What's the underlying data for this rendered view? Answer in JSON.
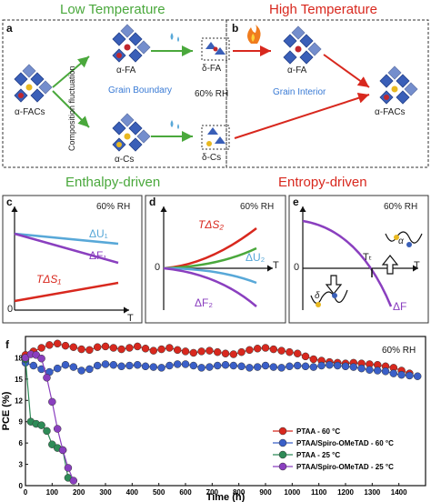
{
  "titles": {
    "low_temperature": "Low Temperature",
    "high_temperature": "High Temperature",
    "enthalpy": "Enthalpy-driven",
    "entropy": "Entropy-driven"
  },
  "panel_ab": {
    "a": "a",
    "b": "b",
    "afacs_left": "α-FACs",
    "afa": "α-FA",
    "acs": "α-Cs",
    "dfa": "δ-FA",
    "dcs": "δ-Cs",
    "afa_right": "α-FA",
    "afacs_right": "α-FACs",
    "composition": "Composition fluctuation",
    "grain_boundary": "Grain Boundary",
    "rh": "60% RH",
    "grain_interior": "Grain Interior"
  },
  "panel_c": {
    "label": "c",
    "rh": "60% RH",
    "du1": "ΔU₁",
    "df1": "ΔF₁",
    "tds1": "TΔS₁",
    "origin": "0",
    "taxis": "T"
  },
  "panel_d": {
    "label": "d",
    "rh": "60% RH",
    "tds2": "TΔS₂",
    "du2": "ΔU₂",
    "df2": "ΔF₂",
    "origin": "0",
    "taxis": "T"
  },
  "panel_e": {
    "label": "e",
    "rh": "60% RH",
    "tt": "Tₜ",
    "alpha": "α",
    "delta": "δ",
    "df": "ΔF",
    "origin": "0",
    "taxis": "T"
  },
  "colors": {
    "green": "#4aa83c",
    "red": "#d8281e",
    "blue": "#3a7bd5",
    "purple": "#8a3fbf",
    "lightblue": "#58a8d8"
  },
  "chart_data": {
    "type": "line",
    "panel_label": "f",
    "annotation": "60% RH",
    "xlabel": "Time (h)",
    "ylabel": "PCE (%)",
    "xlim": [
      0,
      1500
    ],
    "ylim": [
      0,
      21
    ],
    "xticks": [
      0,
      100,
      200,
      300,
      400,
      500,
      600,
      700,
      800,
      900,
      1000,
      1100,
      1200,
      1300,
      1400
    ],
    "yticks": [
      0,
      3,
      6,
      9,
      12,
      15,
      18
    ],
    "legend_position": "bottom-right",
    "series": [
      {
        "name": "PTAA - 60 °C",
        "color": "#d8281e",
        "x": [
          0,
          30,
          60,
          90,
          120,
          150,
          180,
          210,
          240,
          270,
          300,
          330,
          360,
          390,
          420,
          450,
          480,
          510,
          540,
          570,
          600,
          630,
          660,
          690,
          720,
          750,
          780,
          810,
          840,
          870,
          900,
          930,
          960,
          990,
          1020,
          1050,
          1080,
          1110,
          1140,
          1170,
          1200,
          1230,
          1260,
          1290,
          1320,
          1350,
          1380,
          1410,
          1440
        ],
        "y": [
          18.4,
          18.9,
          19.4,
          19.8,
          20.0,
          19.7,
          19.5,
          19.2,
          19.1,
          19.5,
          19.6,
          19.4,
          19.2,
          19.4,
          19.6,
          19.3,
          19.0,
          19.2,
          19.4,
          19.1,
          18.9,
          18.7,
          18.9,
          19.0,
          18.8,
          18.6,
          18.5,
          18.8,
          19.1,
          19.3,
          19.4,
          19.2,
          19.0,
          18.8,
          18.6,
          18.2,
          17.8,
          17.6,
          17.4,
          17.3,
          17.2,
          17.3,
          17.2,
          17.1,
          17.0,
          16.8,
          16.6,
          16.2,
          15.8
        ]
      },
      {
        "name": "PTAA/Spiro-OMeTAD - 60 °C",
        "color": "#3a5fc8",
        "x": [
          0,
          30,
          60,
          90,
          120,
          150,
          180,
          210,
          240,
          270,
          300,
          330,
          360,
          390,
          420,
          450,
          480,
          510,
          540,
          570,
          600,
          630,
          660,
          690,
          720,
          750,
          780,
          810,
          840,
          870,
          900,
          930,
          960,
          990,
          1020,
          1050,
          1080,
          1110,
          1140,
          1170,
          1200,
          1230,
          1260,
          1290,
          1320,
          1350,
          1380,
          1410,
          1440,
          1470
        ],
        "y": [
          17.3,
          16.9,
          16.4,
          16.0,
          16.5,
          17.0,
          16.7,
          16.2,
          16.4,
          16.9,
          17.1,
          17.0,
          16.8,
          16.9,
          17.0,
          16.8,
          16.7,
          16.6,
          16.9,
          17.1,
          17.1,
          16.9,
          16.6,
          16.7,
          16.9,
          17.0,
          16.9,
          16.8,
          16.6,
          16.7,
          16.9,
          16.7,
          16.6,
          16.8,
          16.9,
          16.8,
          16.7,
          16.9,
          17.0,
          16.9,
          16.8,
          16.7,
          16.5,
          16.3,
          16.2,
          16.1,
          15.8,
          15.6,
          15.5,
          15.4
        ]
      },
      {
        "name": "PTAA - 25 °C",
        "color": "#2e8b57",
        "x": [
          0,
          20,
          40,
          60,
          80,
          100,
          120,
          140,
          160
        ],
        "y": [
          17.8,
          9.0,
          8.7,
          8.5,
          7.7,
          5.8,
          5.3,
          5.0,
          1.1
        ]
      },
      {
        "name": "PTAA/Spiro-OMeTAD - 25 °C",
        "color": "#8a3fbf",
        "x": [
          0,
          20,
          40,
          60,
          80,
          100,
          120,
          140,
          160,
          180
        ],
        "y": [
          18.0,
          18.5,
          18.4,
          17.9,
          15.2,
          11.8,
          8.0,
          5.0,
          2.5,
          0.7
        ]
      }
    ]
  }
}
